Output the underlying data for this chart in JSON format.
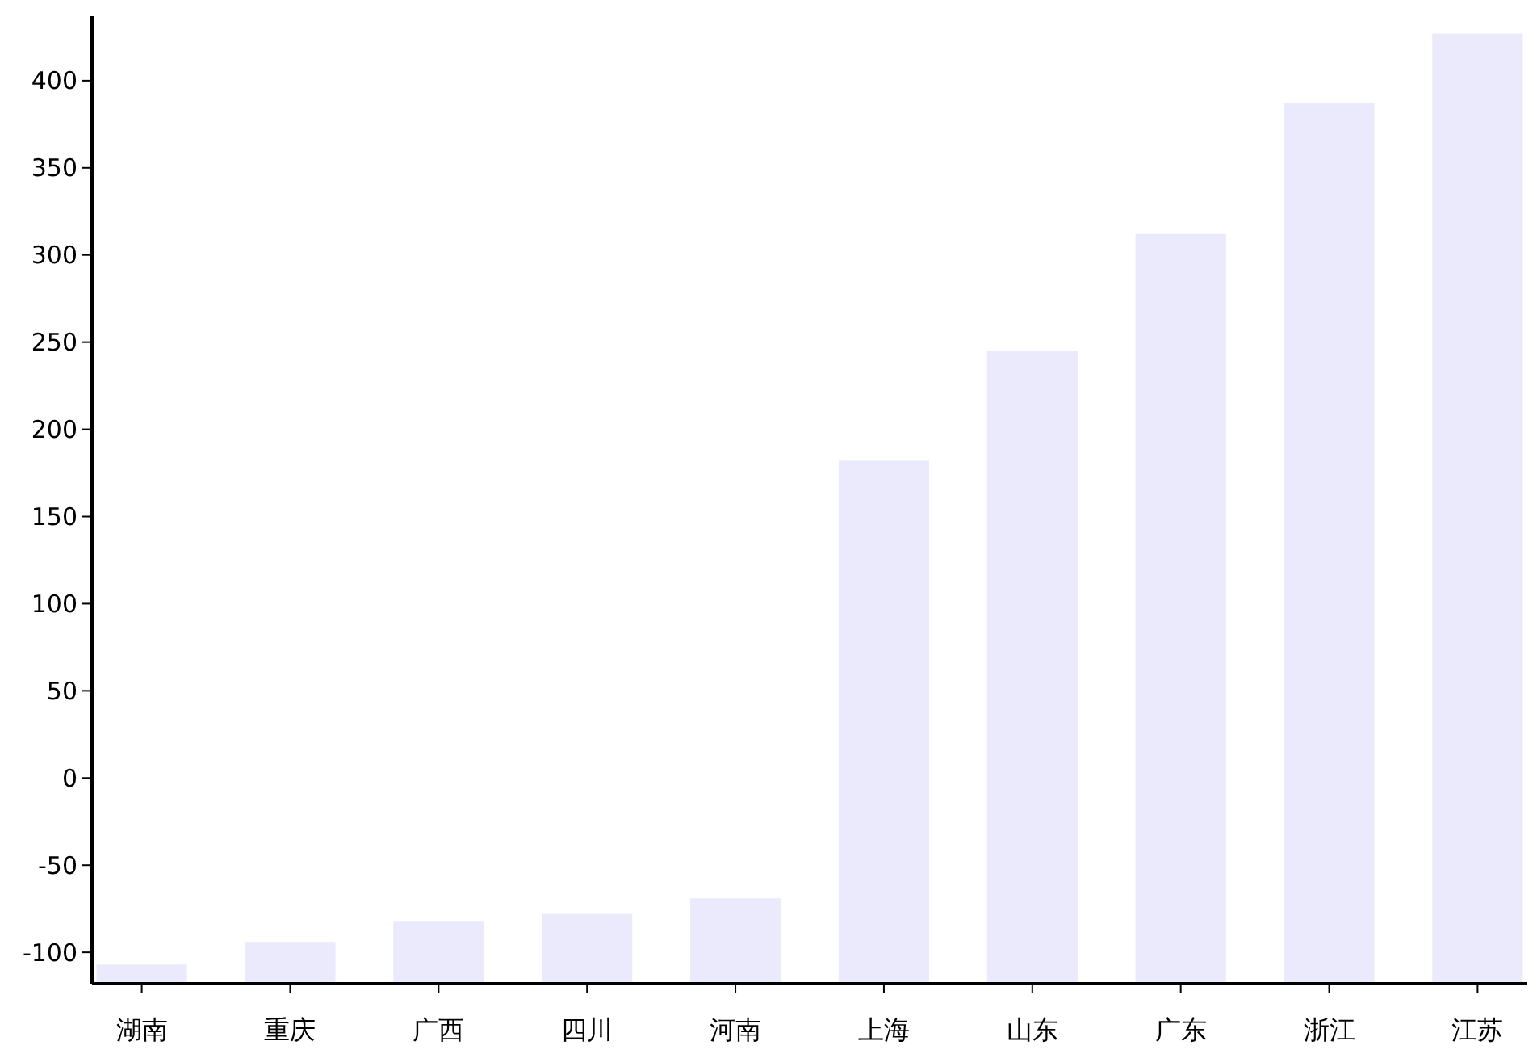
{
  "chart_data": {
    "type": "bar",
    "categories": [
      "湖南",
      "重庆",
      "广西",
      "四川",
      "河南",
      "上海",
      "山东",
      "广东",
      "浙江",
      "江苏"
    ],
    "base": [
      -118,
      -118,
      -118,
      -118,
      -118,
      -118,
      -118,
      -118,
      -118,
      -118
    ],
    "values": [
      11,
      24,
      36,
      40,
      49,
      300,
      363,
      430,
      505,
      545
    ],
    "color": "#eaeafc",
    "ylim": [
      -118,
      437
    ],
    "yticks": [
      -100,
      -50,
      0,
      50,
      100,
      150,
      200,
      250,
      300,
      350,
      400
    ],
    "grid": false
  }
}
